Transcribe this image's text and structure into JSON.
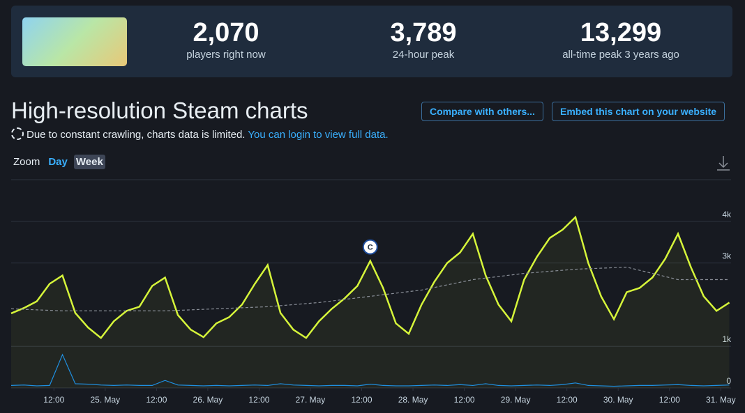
{
  "header": {
    "stats": [
      {
        "value": "2,070",
        "label": "players right now"
      },
      {
        "value": "3,789",
        "label": "24-hour peak"
      },
      {
        "value": "13,299",
        "label": "all-time peak 3 years ago"
      }
    ]
  },
  "title": "High-resolution Steam charts",
  "buttons": [
    "Compare with others...",
    "Embed this chart on your website"
  ],
  "notice": {
    "text": "Due to constant crawling, charts data is limited.",
    "link": "You can login to view full data."
  },
  "zoom": {
    "label": "Zoom",
    "options": [
      "Day",
      "Week"
    ]
  },
  "chart_data": {
    "type": "line",
    "x": [
      2,
      5,
      8,
      11,
      14,
      17,
      20,
      23,
      26,
      29,
      32,
      35,
      38,
      41,
      44,
      47,
      50,
      53,
      56,
      59,
      62,
      65,
      68,
      71,
      74,
      77,
      80,
      83,
      86,
      89,
      92,
      95,
      98,
      101,
      104,
      107,
      110,
      113,
      116,
      119,
      122,
      125,
      128,
      131,
      134,
      137,
      140,
      143,
      146,
      149,
      152,
      155,
      158,
      161,
      164,
      167,
      170
    ],
    "series": [
      {
        "color": "#d6f53a",
        "values": [
          1790,
          1920,
          2080,
          2500,
          2700,
          1800,
          1450,
          1200,
          1600,
          1850,
          1950,
          2450,
          2650,
          1750,
          1400,
          1220,
          1550,
          1700,
          2000,
          2500,
          2950,
          1800,
          1400,
          1200,
          1600,
          1900,
          2150,
          2450,
          3050,
          2400,
          1550,
          1300,
          2000,
          2550,
          3000,
          3250,
          3700,
          2700,
          2000,
          1600,
          2600,
          3150,
          3600,
          3800,
          4100,
          3000,
          2200,
          1650,
          2300,
          2400,
          2650,
          3100,
          3700,
          2900,
          2200,
          1850,
          2050
        ]
      },
      {
        "color": "#8a8f98",
        "dashed": true,
        "x": [
          2,
          14,
          26,
          38,
          50,
          62,
          74,
          86,
          98,
          110,
          122,
          134,
          146,
          158,
          170
        ],
        "values": [
          1900,
          1850,
          1850,
          1850,
          1900,
          1950,
          2050,
          2200,
          2350,
          2600,
          2750,
          2850,
          2900,
          2600,
          2600
        ]
      },
      {
        "color": "#1f8fe0",
        "values": [
          60,
          70,
          50,
          60,
          800,
          100,
          90,
          70,
          60,
          70,
          60,
          60,
          180,
          70,
          60,
          50,
          60,
          50,
          60,
          70,
          60,
          100,
          70,
          60,
          50,
          60,
          60,
          50,
          90,
          60,
          50,
          50,
          60,
          70,
          60,
          80,
          60,
          100,
          60,
          50,
          60,
          70,
          60,
          80,
          120,
          60,
          50,
          40,
          50,
          60,
          60,
          70,
          80,
          60,
          50,
          60,
          70
        ]
      }
    ],
    "xlim": [
      2,
      170.4
    ],
    "xticks": [
      {
        "value": 12,
        "label": "12:00"
      },
      {
        "value": 24,
        "label": "25. May"
      },
      {
        "value": 36,
        "label": "12:00"
      },
      {
        "value": 48,
        "label": "26. May"
      },
      {
        "value": 60,
        "label": "12:00"
      },
      {
        "value": 72,
        "label": "27. May"
      },
      {
        "value": 84,
        "label": "12:00"
      },
      {
        "value": 96,
        "label": "28. May"
      },
      {
        "value": 108,
        "label": "12:00"
      },
      {
        "value": 120,
        "label": "29. May"
      },
      {
        "value": 132,
        "label": "12:00"
      },
      {
        "value": 144,
        "label": "30. May"
      },
      {
        "value": 156,
        "label": "12:00"
      },
      {
        "value": 168,
        "label": "31. May"
      }
    ],
    "ylim": [
      0,
      5000
    ],
    "yticks": [
      {
        "value": 0,
        "label": "0"
      },
      {
        "value": 1000,
        "label": "1k"
      },
      {
        "value": 3000,
        "label": "3k"
      },
      {
        "value": 4000,
        "label": "4k"
      }
    ],
    "grid": true,
    "annotations": [
      {
        "x": 86,
        "y": 3050,
        "text": "C"
      }
    ]
  }
}
